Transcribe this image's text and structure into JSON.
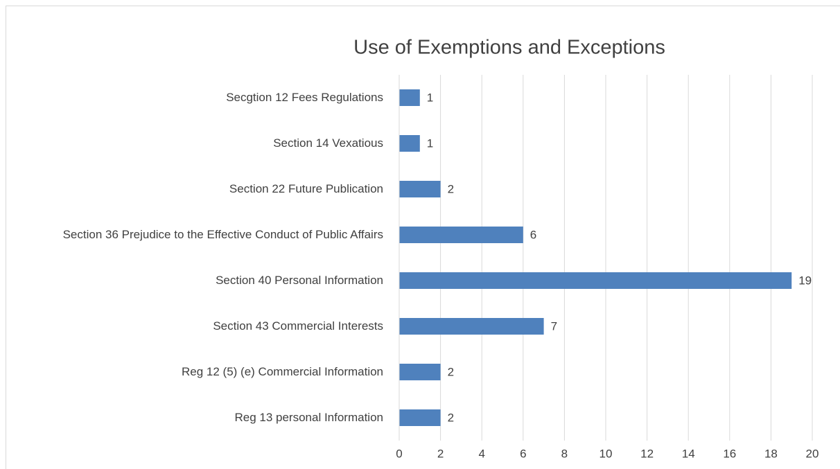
{
  "chart_data": {
    "type": "hbar",
    "title": "Use of Exemptions and Exceptions",
    "categories": [
      "Secgtion 12 Fees Regulations",
      "Section 14 Vexatious",
      "Section 22 Future Publication",
      "Section 36 Prejudice to the Effective Conduct of Public Affairs",
      "Section 40 Personal Information",
      "Section 43 Commercial Interests",
      "Reg 12 (5) (e) Commercial Information",
      "Reg 13 personal Information"
    ],
    "values": [
      1,
      1,
      2,
      6,
      19,
      7,
      2,
      2
    ],
    "color": "#4f81bd",
    "xlim": [
      0,
      20
    ],
    "xticks": [
      0,
      2,
      4,
      6,
      8,
      10,
      12,
      14,
      16,
      18,
      20
    ],
    "grid": true
  }
}
